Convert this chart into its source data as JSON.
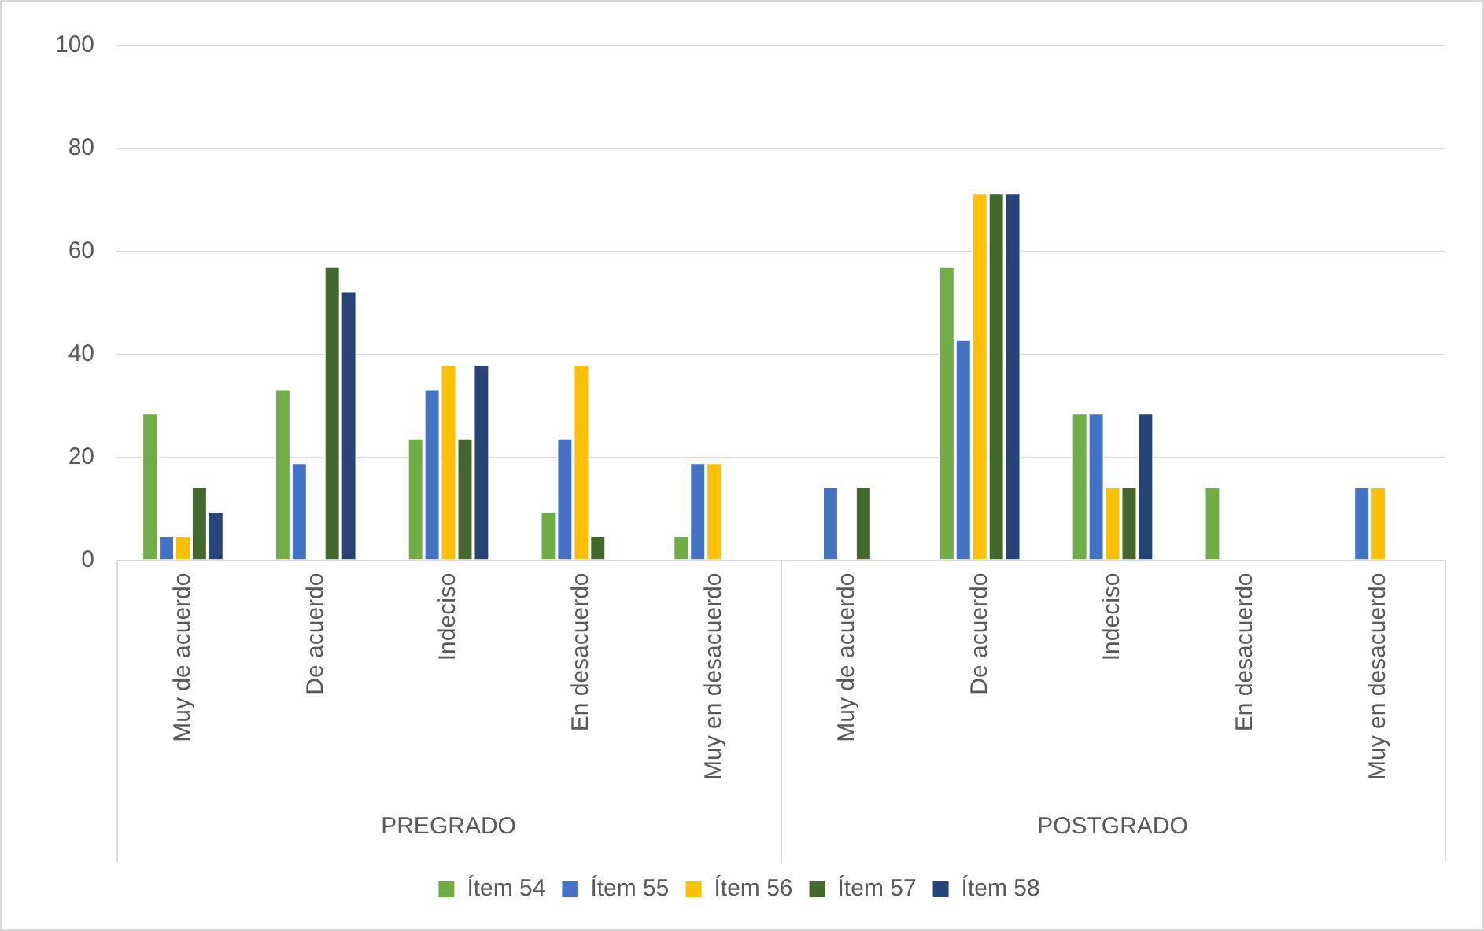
{
  "chart_data": {
    "type": "bar",
    "categories": [
      "Muy de acuerdo",
      "De acuerdo",
      "Indeciso",
      "En desacuerdo",
      "Muy en desacuerdo",
      "Muy de acuerdo",
      "De acuerdo",
      "Indeciso",
      "En desacuerdo",
      "Muy en desacuerdo"
    ],
    "series": [
      {
        "name": "Ítem 54",
        "color": "#70ad47",
        "values": [
          28.6,
          33.3,
          23.8,
          9.5,
          4.8,
          0,
          57.1,
          28.6,
          14.3,
          0
        ]
      },
      {
        "name": "Ítem 55",
        "color": "#4472c4",
        "values": [
          4.8,
          19,
          33.3,
          23.8,
          19,
          14.3,
          42.9,
          28.6,
          0,
          14.3
        ]
      },
      {
        "name": "Ítem 56",
        "color": "#ffc000",
        "values": [
          4.8,
          0,
          38.1,
          38.1,
          19,
          0,
          71.4,
          14.3,
          0,
          14.3
        ]
      },
      {
        "name": "Ítem 57",
        "color": "#43682b",
        "values": [
          14.3,
          57.1,
          23.8,
          4.8,
          0,
          14.3,
          71.4,
          14.3,
          0,
          0
        ]
      },
      {
        "name": "Ítem 58",
        "color": "#264478",
        "values": [
          9.5,
          52.4,
          38.1,
          0,
          0,
          0,
          71.4,
          28.6,
          0,
          0
        ]
      }
    ],
    "annotations": [
      "PREGRADO",
      "POSTGRADO"
    ],
    "ylim": [
      0,
      100
    ],
    "yticks": [
      0,
      20,
      40,
      60,
      80,
      100
    ],
    "grid": "y",
    "legend": "bottom"
  }
}
